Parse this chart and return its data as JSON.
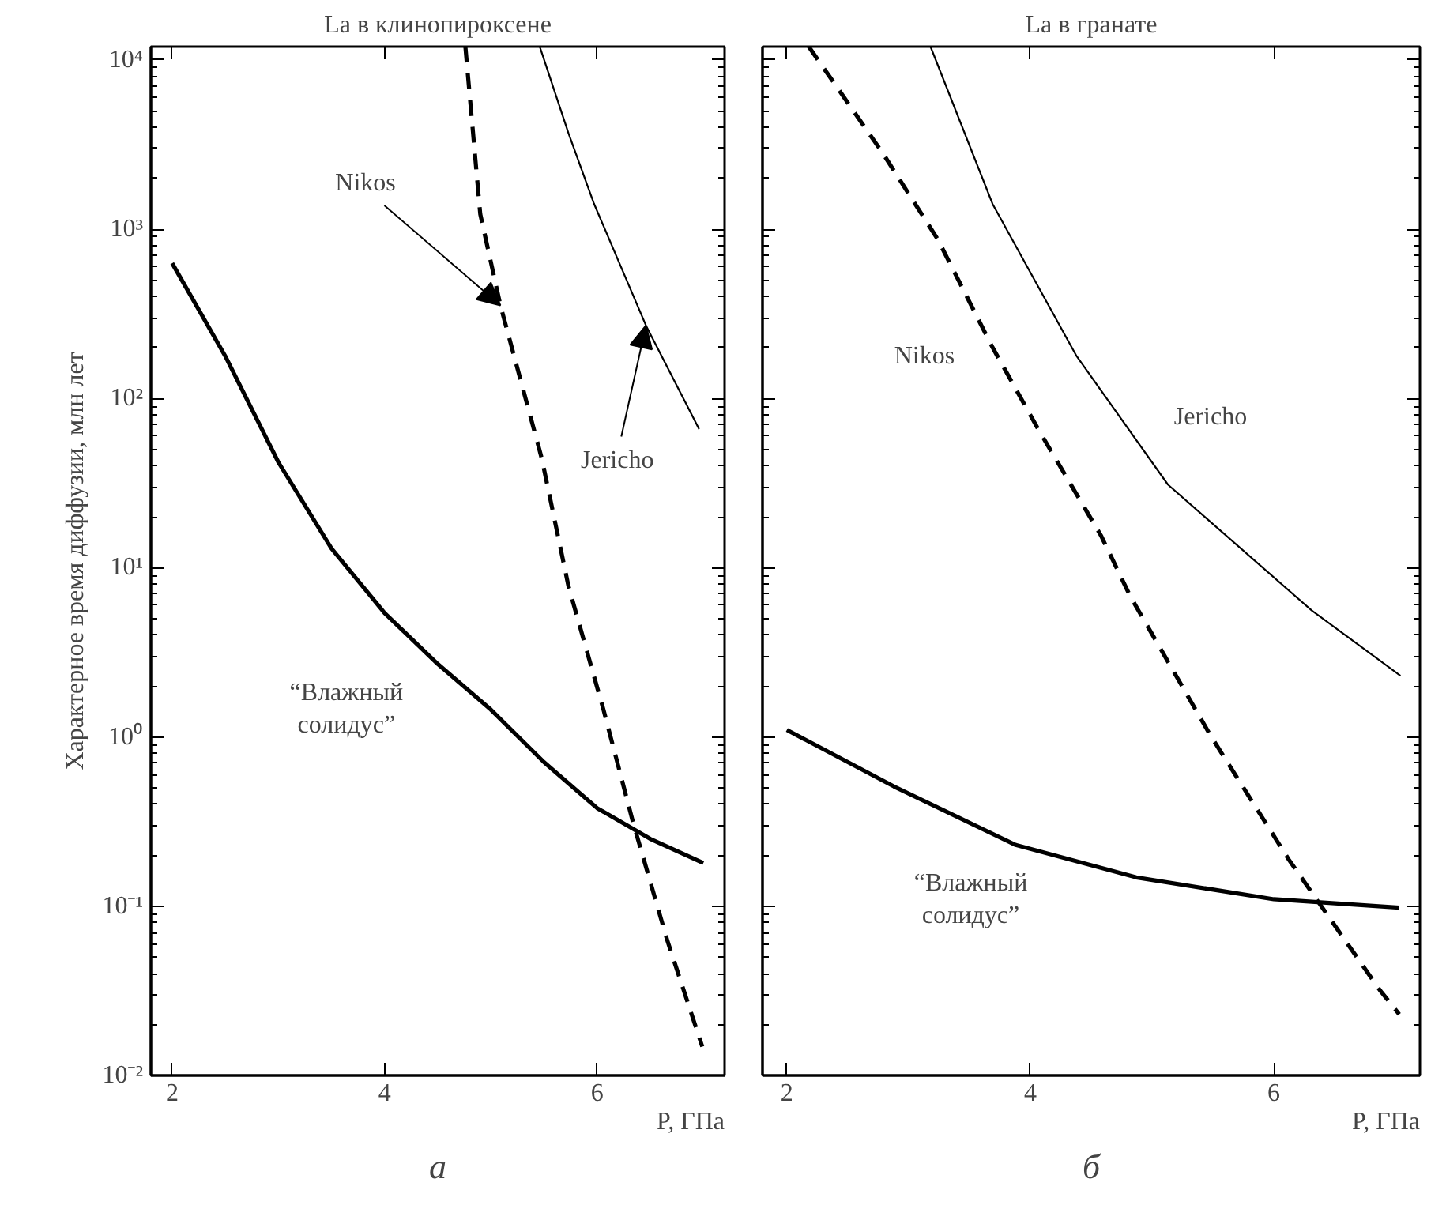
{
  "chart_data": [
    {
      "type": "line",
      "title": "La в клинопироксене",
      "xlabel": "P, ГПа",
      "ylabel": "Характерное время диффузии, млн лет",
      "log": "y",
      "grid": false,
      "xlim": [
        1.8,
        7.2
      ],
      "ylim": [
        0.01,
        12000
      ],
      "xticks": [
        2,
        4,
        6
      ],
      "yticks": [
        {
          "value": 0.01,
          "label": "10⁻²"
        },
        {
          "value": 0.1,
          "label": "10⁻¹"
        },
        {
          "value": 1,
          "label": "10⁰"
        },
        {
          "value": 10,
          "label": "10¹"
        },
        {
          "value": 100,
          "label": "10²"
        },
        {
          "value": 1000,
          "label": "10³"
        },
        {
          "value": 10000,
          "label": "10⁴"
        }
      ],
      "series": [
        {
          "name": "“Влажный\nсолидус”",
          "color": "#000000",
          "line_style": "solid",
          "x": [
            2,
            2.5,
            3,
            3.5,
            4,
            4.5,
            5,
            5.5,
            6,
            6.5,
            7.0
          ],
          "values": [
            630,
            178,
            42,
            13,
            5.4,
            2.7,
            1.45,
            0.71,
            0.38,
            0.25,
            0.18
          ]
        },
        {
          "name": "Nikos",
          "color": "#000000",
          "line_style": "dashed",
          "x": [
            4.76,
            4.9,
            5.09,
            5.48,
            5.73,
            6.06,
            6.34,
            6.66,
            6.99
          ],
          "values": [
            12000,
            1230,
            355,
            44,
            7.8,
            1.45,
            0.31,
            0.063,
            0.0148
          ]
        },
        {
          "name": "Jericho",
          "color": "#000000",
          "line_style": "solid",
          "x": [
            5.46,
            5.73,
            5.97,
            6.46,
            6.96
          ],
          "values": [
            12000,
            3700,
            1420,
            270,
            66
          ]
        }
      ],
      "annotations": [
        "а"
      ]
    },
    {
      "type": "line",
      "title": "La в гранате",
      "xlabel": "P, ГПа",
      "log": "y",
      "grid": false,
      "tick_labels": "x",
      "xlim": [
        1.8,
        7.2
      ],
      "ylim": [
        0.01,
        12000
      ],
      "xticks": [
        2,
        4,
        6
      ],
      "yticks": [
        {
          "value": 0.01,
          "label": null
        },
        {
          "value": 0.1,
          "label": null
        },
        {
          "value": 1,
          "label": null
        },
        {
          "value": 10,
          "label": null
        },
        {
          "value": 100,
          "label": null
        },
        {
          "value": 1000,
          "label": null
        },
        {
          "value": 10000,
          "label": null
        }
      ],
      "series": [
        {
          "name": "“Влажный\nсолидус”",
          "color": "#000000",
          "line_style": "solid",
          "x": [
            2.0,
            2.88,
            3.88,
            4.87,
            6.0,
            7.03
          ],
          "values": [
            1.1,
            0.51,
            0.23,
            0.148,
            0.11,
            0.098
          ]
        },
        {
          "name": "Nikos",
          "color": "#000000",
          "line_style": "dashed",
          "x": [
            2.18,
            2.79,
            3.24,
            3.69,
            4.08,
            4.58,
            4.82,
            5.48,
            6.12,
            6.87,
            7.03
          ],
          "values": [
            12000,
            2800,
            870,
            200,
            63,
            15.5,
            6.8,
            1.02,
            0.19,
            0.032,
            0.023
          ]
        },
        {
          "name": "Jericho",
          "color": "#000000",
          "line_style": "solid",
          "x": [
            3.18,
            3.69,
            4.38,
            5.13,
            6.31,
            7.04
          ],
          "values": [
            12000,
            1410,
            178,
            31,
            5.6,
            2.3
          ]
        }
      ],
      "annotations": [
        "б"
      ]
    }
  ]
}
